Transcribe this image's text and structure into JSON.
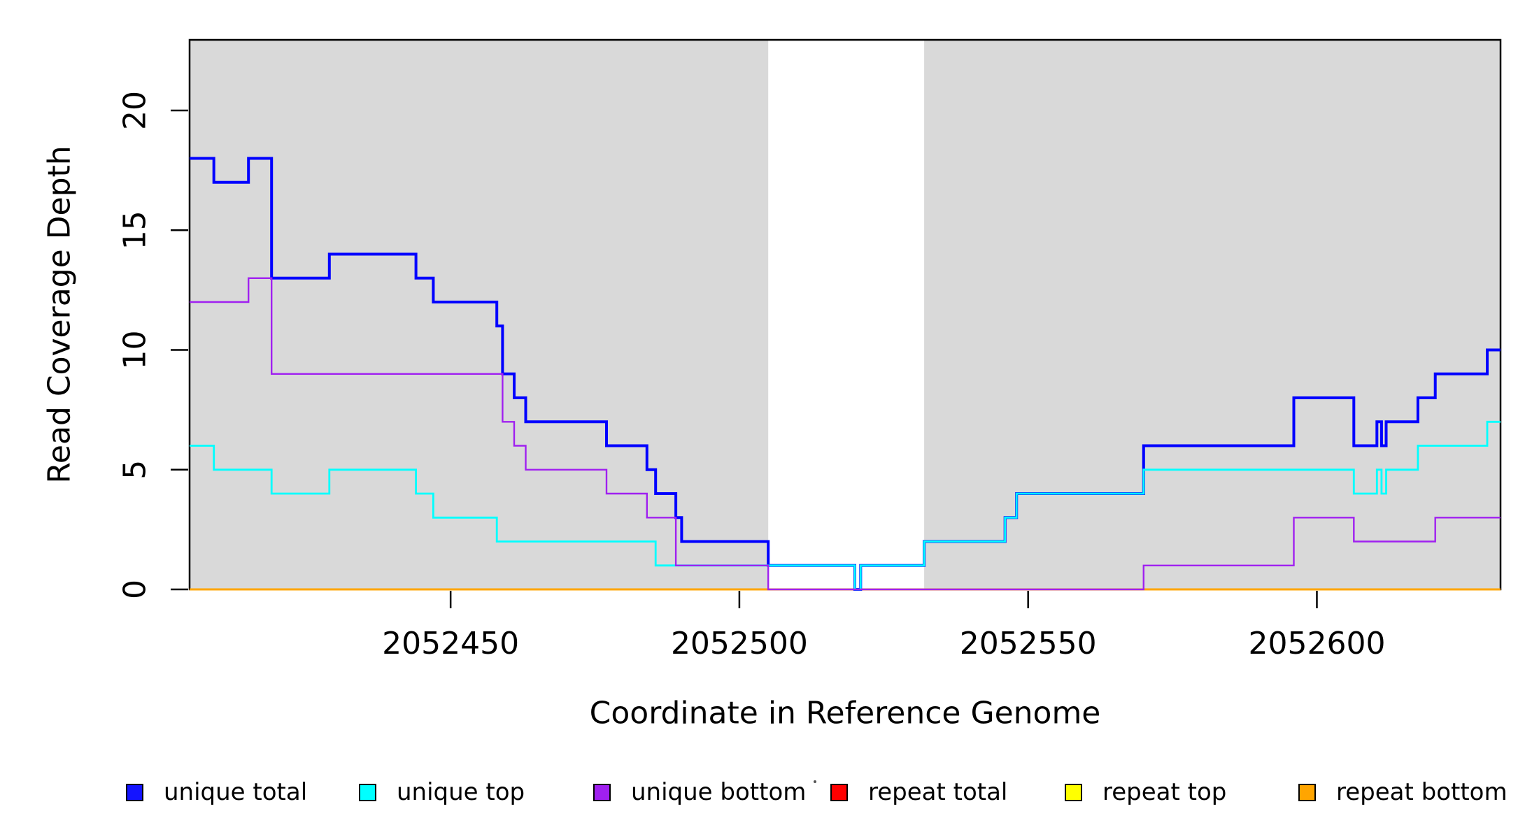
{
  "chart_data": {
    "type": "line",
    "step": true,
    "title": "",
    "xlabel": "Coordinate in Reference Genome",
    "ylabel": "Read Coverage Depth",
    "xlim": [
      2052404.8,
      2052631.8
    ],
    "ylim": [
      0,
      22.95
    ],
    "x_ticks": [
      2052450,
      2052500,
      2052550,
      2052600
    ],
    "x_tick_labels": [
      "2052450",
      "2052500",
      "2052550",
      "2052600"
    ],
    "y_ticks": [
      0,
      5,
      10,
      15,
      20
    ],
    "y_tick_labels": [
      "0",
      "5",
      "10",
      "15",
      "20"
    ],
    "grid": false,
    "legend_position": "bottom",
    "background_bands": {
      "color": "#d9d9d9",
      "note": "gray shaded mappable regions; white gap between 2052505 and 2052532",
      "regions": [
        [
          2052404.8,
          2052505
        ],
        [
          2052532,
          2052631.8
        ]
      ]
    },
    "series": [
      {
        "name": "repeat total",
        "color": "#ff0000",
        "lwd": 2.5,
        "points": [
          [
            2052404.8,
            0
          ],
          [
            2052631.8,
            0
          ]
        ]
      },
      {
        "name": "repeat top",
        "color": "#ffff00",
        "lwd": 2.5,
        "points": [
          [
            2052404.8,
            0
          ],
          [
            2052631.8,
            0
          ]
        ]
      },
      {
        "name": "repeat bottom",
        "color": "#ffa500",
        "lwd": 3,
        "points": [
          [
            2052404.8,
            0
          ],
          [
            2052631.8,
            0
          ]
        ]
      },
      {
        "name": "unique total",
        "color": "#0000ff",
        "lwd": 4,
        "points": [
          [
            2052404.8,
            18
          ],
          [
            2052409,
            17
          ],
          [
            2052415,
            18
          ],
          [
            2052419,
            13
          ],
          [
            2052429,
            14
          ],
          [
            2052444,
            13
          ],
          [
            2052447,
            12
          ],
          [
            2052458,
            11
          ],
          [
            2052459,
            9
          ],
          [
            2052461,
            8
          ],
          [
            2052463,
            7
          ],
          [
            2052477,
            6
          ],
          [
            2052484,
            5
          ],
          [
            2052485.5,
            4
          ],
          [
            2052489,
            3
          ],
          [
            2052490,
            2
          ],
          [
            2052505,
            1
          ],
          [
            2052520,
            0
          ],
          [
            2052521,
            1
          ],
          [
            2052532,
            2
          ],
          [
            2052546,
            3
          ],
          [
            2052548,
            4
          ],
          [
            2052570,
            6
          ],
          [
            2052596,
            8
          ],
          [
            2052606.4,
            6
          ],
          [
            2052610.4,
            7
          ],
          [
            2052611.2,
            6
          ],
          [
            2052612,
            7
          ],
          [
            2052617.5,
            8
          ],
          [
            2052620.5,
            9
          ],
          [
            2052629.5,
            10
          ],
          [
            2052631.8,
            10
          ]
        ]
      },
      {
        "name": "unique top",
        "color": "#00ffff",
        "lwd": 2.8,
        "points": [
          [
            2052404.8,
            6
          ],
          [
            2052409,
            5
          ],
          [
            2052419,
            4
          ],
          [
            2052429,
            5
          ],
          [
            2052444,
            4
          ],
          [
            2052447,
            3
          ],
          [
            2052458,
            2
          ],
          [
            2052485.5,
            1
          ],
          [
            2052520,
            0
          ],
          [
            2052521,
            1
          ],
          [
            2052532,
            2
          ],
          [
            2052546,
            3
          ],
          [
            2052548,
            4
          ],
          [
            2052570,
            5
          ],
          [
            2052606.4,
            4
          ],
          [
            2052610.4,
            5
          ],
          [
            2052611.2,
            4
          ],
          [
            2052612,
            5
          ],
          [
            2052617.5,
            6
          ],
          [
            2052629.5,
            7
          ],
          [
            2052631.8,
            7
          ]
        ]
      },
      {
        "name": "unique bottom",
        "color": "#a020f0",
        "lwd": 2.4,
        "points": [
          [
            2052404.8,
            12
          ],
          [
            2052415,
            13
          ],
          [
            2052419,
            9
          ],
          [
            2052459,
            7
          ],
          [
            2052461,
            6
          ],
          [
            2052463,
            5
          ],
          [
            2052477,
            4
          ],
          [
            2052484,
            3
          ],
          [
            2052489,
            1
          ],
          [
            2052505,
            0
          ],
          [
            2052570,
            1
          ],
          [
            2052596,
            3
          ],
          [
            2052606.4,
            2
          ],
          [
            2052620.5,
            3
          ],
          [
            2052631.8,
            3
          ]
        ]
      }
    ]
  },
  "legend": {
    "entries": [
      {
        "label": "unique total",
        "color": "#1414ff"
      },
      {
        "label": "unique top",
        "color": "#00ffff"
      },
      {
        "label": "unique bottom",
        "color": "#a020f0"
      },
      {
        "label": "repeat total",
        "color": "#ff0000"
      },
      {
        "label": "repeat top",
        "color": "#ffff00"
      },
      {
        "label": "repeat bottom",
        "color": "#ffa500"
      }
    ]
  },
  "axes": {
    "x_title": "Coordinate in Reference Genome",
    "y_title": "Read Coverage Depth"
  }
}
